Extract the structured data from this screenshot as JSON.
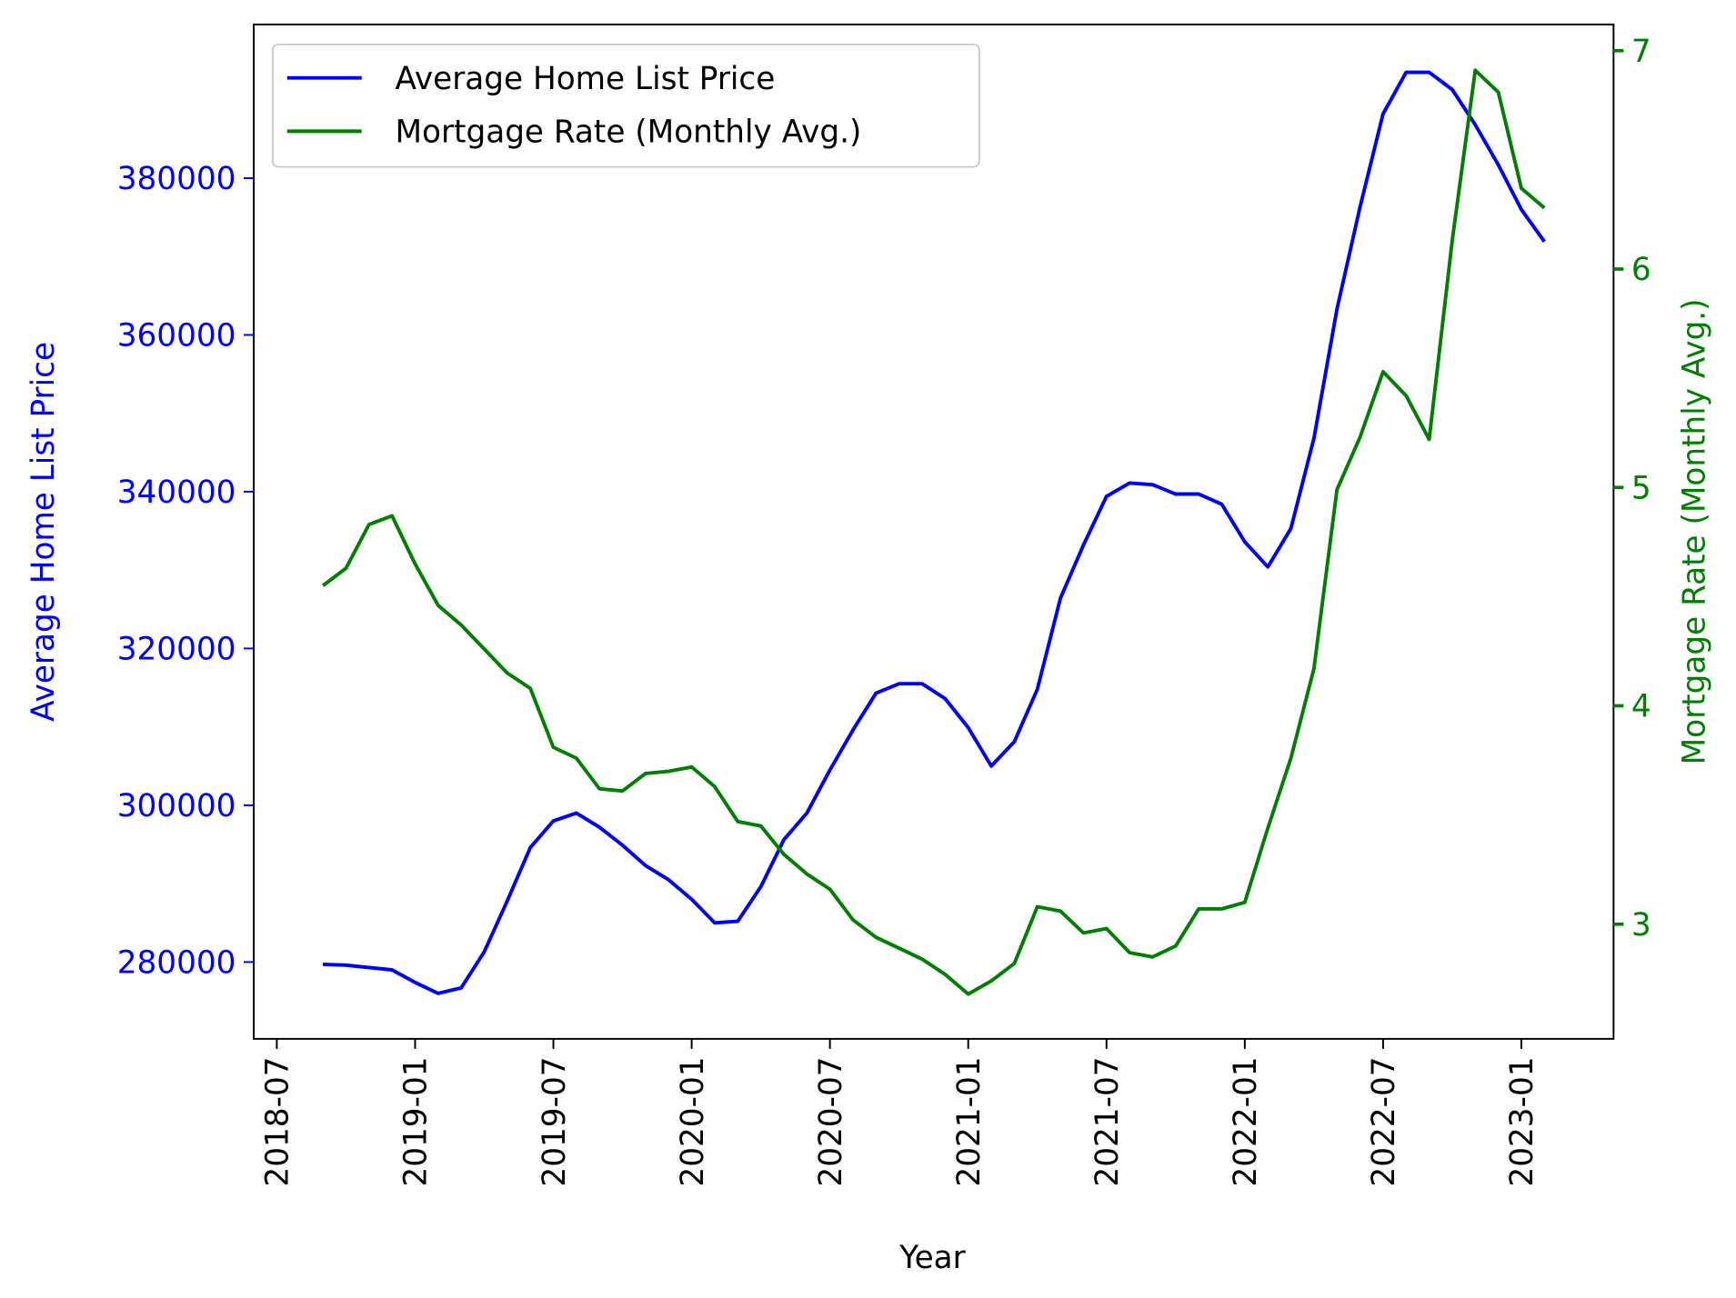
{
  "chart_data": {
    "type": "line",
    "xlabel": "Year",
    "ylabel": "Average Home List Price",
    "y2label": "Mortgage Rate (Monthly Avg.)",
    "x": [
      "2018-09",
      "2018-10",
      "2018-11",
      "2018-12",
      "2019-01",
      "2019-02",
      "2019-03",
      "2019-04",
      "2019-05",
      "2019-06",
      "2019-07",
      "2019-08",
      "2019-09",
      "2019-10",
      "2019-11",
      "2019-12",
      "2020-01",
      "2020-02",
      "2020-03",
      "2020-04",
      "2020-05",
      "2020-06",
      "2020-07",
      "2020-08",
      "2020-09",
      "2020-10",
      "2020-11",
      "2020-12",
      "2021-01",
      "2021-02",
      "2021-03",
      "2021-04",
      "2021-05",
      "2021-06",
      "2021-07",
      "2021-08",
      "2021-09",
      "2021-10",
      "2021-11",
      "2021-12",
      "2022-01",
      "2022-02",
      "2022-03",
      "2022-04",
      "2022-05",
      "2022-06",
      "2022-07",
      "2022-08",
      "2022-09",
      "2022-10",
      "2022-11",
      "2022-12",
      "2023-01",
      "2023-02"
    ],
    "series": [
      {
        "name": "Average Home List Price",
        "color": "#0000ff",
        "axis": "y",
        "values": [
          279700,
          279600,
          279300,
          279000,
          277400,
          276000,
          276700,
          281300,
          287800,
          294600,
          298000,
          299000,
          297200,
          294900,
          292300,
          290500,
          288000,
          285000,
          285200,
          289600,
          295600,
          299000,
          304500,
          309600,
          314300,
          315500,
          315500,
          313600,
          309900,
          305000,
          308100,
          314800,
          326400,
          333200,
          339400,
          341100,
          340900,
          339700,
          339700,
          338400,
          333600,
          330400,
          335300,
          346800,
          363300,
          376300,
          388200,
          393500,
          393500,
          391300,
          386800,
          381700,
          376000,
          371900
        ]
      },
      {
        "name": "Mortgage Rate (Monthly Avg.)",
        "color": "#008000",
        "axis": "y2",
        "values": [
          4.55,
          4.63,
          4.83,
          4.87,
          4.65,
          4.46,
          4.37,
          4.26,
          4.15,
          4.08,
          3.81,
          3.76,
          3.62,
          3.61,
          3.69,
          3.7,
          3.72,
          3.63,
          3.47,
          3.45,
          3.32,
          3.23,
          3.16,
          3.02,
          2.94,
          2.89,
          2.84,
          2.77,
          2.68,
          2.74,
          2.82,
          3.08,
          3.06,
          2.96,
          2.98,
          2.87,
          2.85,
          2.9,
          3.07,
          3.07,
          3.1,
          3.44,
          3.76,
          4.17,
          4.99,
          5.23,
          5.53,
          5.42,
          5.22,
          6.13,
          6.91,
          6.81,
          6.37,
          6.28
        ]
      }
    ],
    "xlim": [
      "2018-06",
      "2023-05"
    ],
    "xticks": [
      "2018-07",
      "2019-01",
      "2019-07",
      "2020-01",
      "2020-07",
      "2021-01",
      "2021-07",
      "2022-01",
      "2022-07",
      "2023-01"
    ],
    "ylim": [
      270200,
      399600
    ],
    "yticks": [
      280000,
      300000,
      320000,
      340000,
      360000,
      380000
    ],
    "y2lim": [
      2.475,
      7.12
    ],
    "y2ticks": [
      3,
      4,
      5,
      6,
      7
    ],
    "legend": "upper left",
    "grid": false
  }
}
